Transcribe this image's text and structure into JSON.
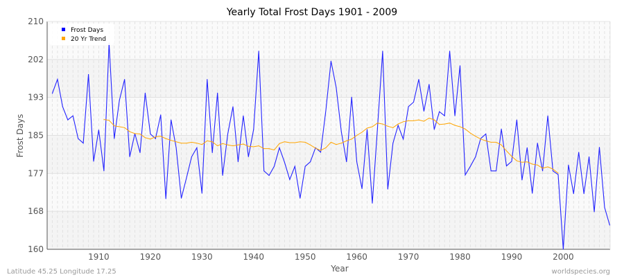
{
  "chart_data": {
    "type": "line",
    "title": "Yearly Total Frost Days 1901 - 2009",
    "xlabel": "Year",
    "ylabel": "Frost Days",
    "xlim": [
      1900,
      2009
    ],
    "ylim": [
      160,
      210
    ],
    "x_ticks": [
      1910,
      1920,
      1930,
      1940,
      1950,
      1960,
      1970,
      1980,
      1990,
      2000
    ],
    "y_tick_labels": [
      "210",
      "202",
      "193",
      "185",
      "177",
      "168",
      "160"
    ],
    "grid": true,
    "legend_position": "top-left",
    "series": [
      {
        "name": "Frost Days",
        "color": "#2222ff",
        "x_start": 1901,
        "values": [
          194.2,
          197.3,
          191.3,
          188.4,
          189.3,
          184.3,
          183.3,
          198.4,
          179.3,
          186.2,
          177.2,
          205.3,
          184.3,
          192.7,
          197.3,
          180.3,
          185.4,
          181.2,
          194.3,
          185.3,
          184.3,
          189.5,
          171.1,
          188.4,
          182.3,
          171.2,
          175.7,
          180.3,
          182.3,
          172.3,
          197.3,
          181.2,
          194.3,
          176.2,
          185.3,
          191.3,
          179.2,
          189.3,
          180.3,
          186.3,
          203.5,
          177.2,
          176.2,
          178.2,
          182.3,
          179.1,
          175.3,
          178.2,
          171.2,
          178.2,
          179.2,
          182.3,
          181.3,
          190.5,
          201.3,
          195.5,
          185.8,
          179.2,
          193.4,
          179.2,
          173.3,
          186.3,
          170.1,
          186.5,
          203.5,
          173.2,
          183.3,
          187.2,
          184.2,
          191.3,
          192.3,
          197.3,
          190.3,
          196.2,
          186.3,
          190.2,
          189.3,
          203.5,
          189.3,
          200.3,
          176.3,
          178.2,
          180.3,
          184.3,
          185.3,
          177.2,
          177.2,
          186.4,
          178.3,
          179.3,
          188.4,
          175.2,
          182.3,
          172.3,
          183.3,
          177.2,
          189.3,
          177.2,
          176.4,
          160.0,
          178.5,
          172.2,
          181.3,
          172.2,
          180.3,
          168.2,
          182.4,
          169.2,
          165.3
        ]
      },
      {
        "name": "20 Yr Trend",
        "color": "#ffa500",
        "x_start": 1911,
        "values": [
          188.5,
          188.3,
          187.1,
          186.9,
          186.7,
          185.8,
          185.4,
          185.3,
          184.5,
          184.2,
          184.7,
          184.8,
          184.3,
          183.9,
          183.6,
          183.3,
          183.3,
          183.5,
          183.3,
          183.0,
          183.8,
          183.6,
          182.7,
          183.2,
          182.9,
          182.7,
          182.9,
          183.1,
          182.6,
          182.5,
          182.7,
          182.1,
          182.1,
          181.8,
          183.2,
          183.6,
          183.4,
          183.4,
          183.6,
          183.5,
          182.9,
          182.2,
          181.7,
          182.3,
          183.5,
          183.0,
          183.3,
          183.8,
          184.2,
          185.0,
          185.7,
          186.6,
          186.9,
          187.7,
          187.5,
          187.0,
          186.7,
          187.5,
          188.0,
          188.2,
          188.2,
          188.4,
          188.1,
          188.8,
          188.4,
          187.4,
          187.5,
          187.7,
          187.2,
          186.9,
          186.4,
          185.5,
          184.8,
          184.2,
          183.8,
          183.5,
          183.5,
          182.9,
          181.6,
          180.4,
          179.4,
          179.1,
          179.2,
          178.7,
          178.5,
          177.8,
          178.1,
          177.6,
          176.7
        ]
      }
    ]
  },
  "footer": {
    "location": "Latitude 45.25 Longitude 17.25",
    "site": "worldspecies.org"
  }
}
